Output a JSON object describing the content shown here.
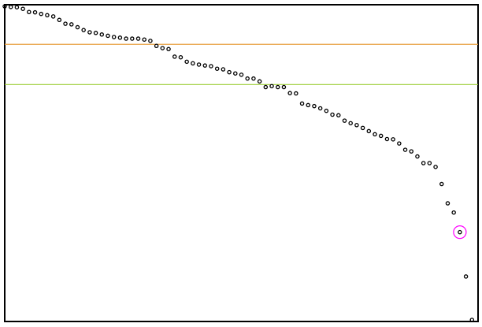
{
  "chart_data": {
    "type": "scatter",
    "title": "",
    "xlabel": "",
    "ylabel": "",
    "grid": false,
    "legend": "none",
    "xlim": [
      0,
      78
    ],
    "ylim": [
      0,
      1
    ],
    "x": [
      0,
      1,
      2,
      3,
      4,
      5,
      6,
      7,
      8,
      9,
      10,
      11,
      12,
      13,
      14,
      15,
      16,
      17,
      18,
      19,
      20,
      21,
      22,
      23,
      24,
      25,
      26,
      27,
      28,
      29,
      30,
      31,
      32,
      33,
      34,
      35,
      36,
      37,
      38,
      39,
      40,
      41,
      42,
      43,
      44,
      45,
      46,
      47,
      48,
      49,
      50,
      51,
      52,
      53,
      54,
      55,
      56,
      57,
      58,
      59,
      60,
      61,
      62,
      63,
      64,
      65,
      66,
      67,
      68,
      69,
      70,
      71,
      72,
      73,
      74,
      75,
      76,
      77
    ],
    "y": [
      0.995,
      0.993,
      0.992,
      0.987,
      0.977,
      0.976,
      0.971,
      0.967,
      0.963,
      0.952,
      0.94,
      0.938,
      0.929,
      0.92,
      0.913,
      0.911,
      0.906,
      0.902,
      0.898,
      0.896,
      0.893,
      0.893,
      0.893,
      0.89,
      0.886,
      0.87,
      0.863,
      0.86,
      0.836,
      0.834,
      0.82,
      0.815,
      0.811,
      0.808,
      0.806,
      0.798,
      0.796,
      0.787,
      0.783,
      0.779,
      0.767,
      0.767,
      0.758,
      0.74,
      0.743,
      0.74,
      0.74,
      0.721,
      0.72,
      0.688,
      0.683,
      0.68,
      0.673,
      0.665,
      0.653,
      0.651,
      0.634,
      0.626,
      0.62,
      0.611,
      0.601,
      0.591,
      0.586,
      0.576,
      0.575,
      0.562,
      0.542,
      0.537,
      0.521,
      0.5,
      0.5,
      0.488,
      0.434,
      0.373,
      0.344,
      0.282,
      0.142,
      0.005
    ],
    "highlight_index": 75,
    "hlines": [
      {
        "y": 0.875,
        "color": "#e8a040"
      },
      {
        "y": 0.748,
        "color": "#9acd32"
      }
    ],
    "colors": {
      "points": "#000000",
      "highlight": "#ff00ff",
      "frame": "#000000",
      "background": "#ffffff"
    }
  }
}
